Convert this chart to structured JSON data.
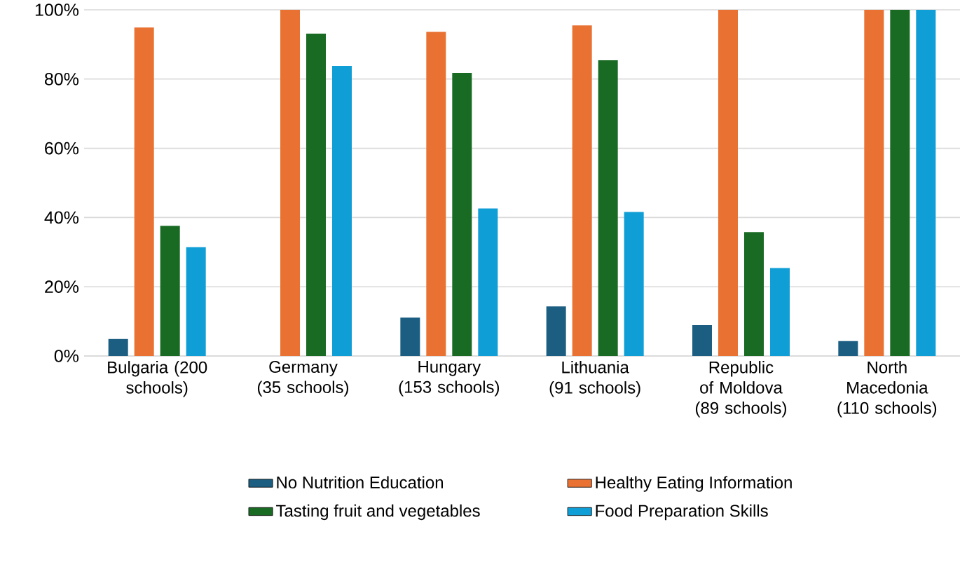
{
  "chart_data": {
    "type": "bar",
    "categories": [
      "Bulgaria (200 schools)",
      "Germany (35 schools)",
      "Hungary (153 schools)",
      "Lithuania (91 schools)",
      "Republic of Moldova (89 schools)",
      "North Macedonia (110 schools)"
    ],
    "series": [
      {
        "name": "No Nutrition Education",
        "color": "#1b5e82",
        "values": [
          4.9,
          0,
          11.1,
          14.3,
          8.9,
          4.3
        ]
      },
      {
        "name": "Healthy Eating Information",
        "color": "#e97132",
        "values": [
          94.9,
          100,
          93.6,
          95.5,
          100,
          100
        ]
      },
      {
        "name": "Tasting fruit and vegetables",
        "color": "#196b24",
        "values": [
          37.6,
          93.1,
          81.8,
          85.4,
          35.8,
          100
        ]
      },
      {
        "name": "Food Preparation Skills",
        "color": "#0f9ed5",
        "values": [
          31.4,
          83.8,
          42.6,
          41.6,
          25.4,
          100
        ]
      }
    ],
    "ylim": [
      0,
      100
    ],
    "yticks": [
      {
        "value": 0,
        "label": "0%"
      },
      {
        "value": 20,
        "label": "20%"
      },
      {
        "value": 40,
        "label": "40%"
      },
      {
        "value": 60,
        "label": "60%"
      },
      {
        "value": 80,
        "label": "80%"
      },
      {
        "value": 100,
        "label": "100%"
      }
    ],
    "grid": "y",
    "legend": "bottom"
  }
}
